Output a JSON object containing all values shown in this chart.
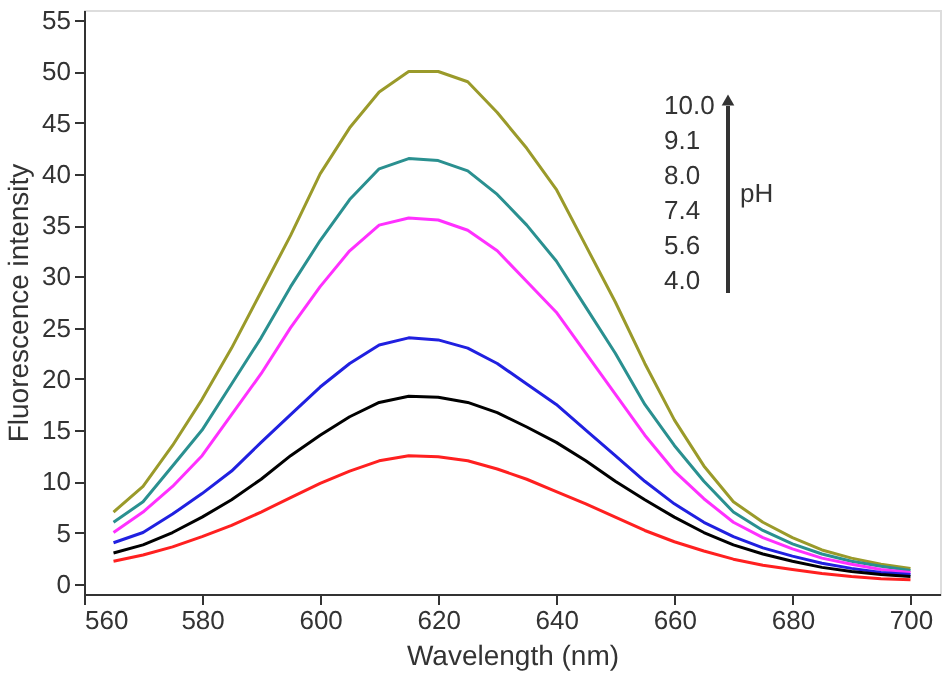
{
  "chart_data": {
    "type": "line",
    "xlabel": "Wavelength (nm)",
    "ylabel": "Fluorescence intensity",
    "x": [
      565,
      570,
      575,
      580,
      585,
      590,
      595,
      600,
      605,
      610,
      615,
      620,
      625,
      630,
      635,
      640,
      645,
      650,
      655,
      660,
      665,
      670,
      675,
      680,
      685,
      690,
      695,
      700
    ],
    "series": [
      {
        "color": "#9a9a2a",
        "values": [
          7,
          9.5,
          13.5,
          18,
          23,
          28.5,
          34,
          40,
          44.5,
          48,
          50,
          50,
          49,
          46,
          42.5,
          38.5,
          33,
          27.5,
          21.5,
          16,
          11.5,
          8,
          6,
          4.5,
          3.3,
          2.5,
          1.9,
          1.5
        ]
      },
      {
        "color": "#2a9090",
        "values": [
          6,
          8,
          11.5,
          15,
          19.5,
          24,
          29,
          33.5,
          37.5,
          40.5,
          41.5,
          41.3,
          40.3,
          38,
          35,
          31.5,
          27,
          22.5,
          17.5,
          13.5,
          10,
          7,
          5.2,
          3.9,
          2.9,
          2.2,
          1.7,
          1.3
        ]
      },
      {
        "color": "#ff30ff",
        "values": [
          5,
          7,
          9.5,
          12.5,
          16.5,
          20.5,
          25,
          29,
          32.5,
          35,
          35.7,
          35.5,
          34.5,
          32.5,
          29.5,
          26.5,
          22.5,
          18.5,
          14.5,
          11,
          8.3,
          6,
          4.5,
          3.4,
          2.5,
          1.9,
          1.4,
          1.1
        ]
      },
      {
        "color": "#2020e0",
        "values": [
          4,
          5,
          6.8,
          8.8,
          11,
          13.8,
          16.5,
          19.2,
          21.5,
          23.3,
          24,
          23.8,
          23,
          21.5,
          19.5,
          17.5,
          15,
          12.5,
          10,
          7.8,
          6,
          4.6,
          3.5,
          2.7,
          2,
          1.5,
          1.1,
          0.9
        ]
      },
      {
        "color": "#000000",
        "values": [
          3,
          3.8,
          5,
          6.5,
          8.2,
          10.2,
          12.5,
          14.5,
          16.3,
          17.7,
          18.3,
          18.2,
          17.7,
          16.7,
          15.3,
          13.8,
          12,
          10,
          8.2,
          6.5,
          5,
          3.8,
          2.9,
          2.2,
          1.6,
          1.2,
          0.9,
          0.7
        ]
      },
      {
        "color": "#ff2020",
        "values": [
          2.2,
          2.8,
          3.6,
          4.6,
          5.7,
          7,
          8.4,
          9.8,
          11,
          12,
          12.5,
          12.4,
          12,
          11.2,
          10.2,
          9,
          7.8,
          6.5,
          5.2,
          4.1,
          3.2,
          2.4,
          1.8,
          1.4,
          1,
          0.7,
          0.5,
          0.4
        ]
      }
    ],
    "xlim": [
      560,
      705
    ],
    "xticks": [
      560,
      580,
      600,
      620,
      640,
      660,
      680,
      700
    ],
    "ylim": [
      -1,
      56
    ],
    "yticks": [
      0,
      5,
      10,
      15,
      20,
      25,
      30,
      35,
      40,
      45,
      50,
      55
    ],
    "annotations": [
      "10.0",
      "9.1",
      "8.0",
      "7.4",
      "5.6",
      "4.0",
      "pH"
    ],
    "grid": false,
    "line_style": "solid",
    "marker": "none"
  }
}
